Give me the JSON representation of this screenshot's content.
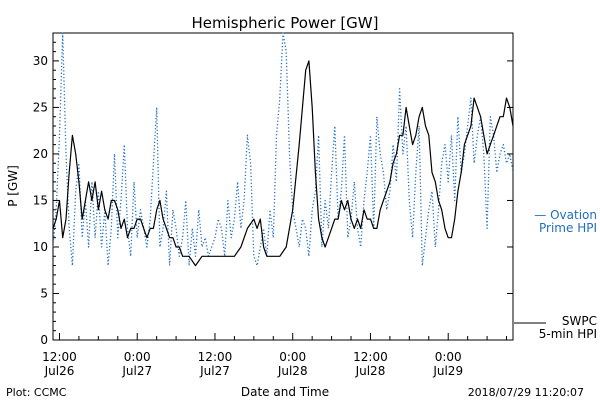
{
  "chart_data": {
    "type": "line",
    "title": "Hemispheric Power [GW]",
    "xlabel": "Date and Time",
    "ylabel": "P [GW]",
    "ylim": [
      0,
      33
    ],
    "xlim_hours_from_jul26_1200": [
      -1,
      70
    ],
    "y_ticks": [
      0,
      5,
      10,
      15,
      20,
      25,
      30
    ],
    "x_ticks": [
      {
        "hours": 0,
        "line1": "12:00",
        "line2": "Jul26"
      },
      {
        "hours": 12,
        "line1": "0:00",
        "line2": "Jul27"
      },
      {
        "hours": 24,
        "line1": "12:00",
        "line2": "Jul27"
      },
      {
        "hours": 36,
        "line1": "0:00",
        "line2": "Jul28"
      },
      {
        "hours": 48,
        "line1": "12:00",
        "line2": "Jul28"
      },
      {
        "hours": 60,
        "line1": "0:00",
        "line2": "Jul29"
      }
    ],
    "grid": false,
    "series": [
      {
        "name": "SWPC 5-min HPI",
        "style": "solid",
        "color": "#000000",
        "x": [
          -1,
          -0.5,
          0,
          0.5,
          1,
          1.5,
          2,
          2.5,
          3,
          3.5,
          4,
          4.5,
          5,
          5.5,
          6,
          6.5,
          7,
          7.5,
          8,
          8.5,
          9,
          9.5,
          10,
          10.5,
          11,
          11.5,
          12,
          12.5,
          13,
          13.5,
          14,
          14.5,
          15,
          15.5,
          16,
          16.5,
          17,
          17.5,
          18,
          18.5,
          19,
          20,
          21,
          22,
          23,
          24,
          25,
          26,
          27,
          28,
          29,
          30,
          30.5,
          31,
          31.5,
          32,
          32.5,
          33,
          33.5,
          34,
          35,
          36,
          37,
          38,
          38.5,
          39,
          39.5,
          40,
          40.5,
          41,
          41.5,
          42,
          42.5,
          43,
          43.5,
          44,
          44.5,
          45,
          45.5,
          46,
          46.5,
          47,
          47.5,
          48,
          48.5,
          49,
          49.5,
          50,
          50.5,
          51,
          51.5,
          52,
          52.5,
          53,
          53.5,
          54,
          54.5,
          55,
          55.5,
          56,
          56.5,
          57,
          57.5,
          58,
          58.5,
          59,
          59.5,
          60,
          60.5,
          61,
          61.5,
          62,
          62.5,
          63,
          63.5,
          64,
          64.5,
          65,
          65.5,
          66,
          66.5,
          67,
          67.5,
          68,
          68.5,
          69,
          69.5,
          70
        ],
        "y": [
          12,
          13,
          15,
          11,
          13,
          18,
          22,
          20,
          17,
          13,
          15,
          17,
          15,
          17,
          14,
          16,
          14,
          13,
          15,
          15,
          14,
          12,
          13,
          11,
          12,
          12,
          13,
          13,
          12,
          11,
          12,
          12,
          14,
          15,
          13,
          12,
          11,
          11,
          10,
          10,
          9,
          9,
          8,
          9,
          9,
          9,
          9,
          9,
          9,
          10,
          12,
          13,
          12,
          13,
          10,
          9,
          9,
          9,
          9,
          9,
          10,
          14,
          21,
          29,
          30,
          25,
          18,
          13,
          11,
          10,
          11,
          12,
          13,
          13,
          15,
          14,
          15,
          13,
          12,
          13,
          12,
          14,
          13,
          13,
          12,
          12,
          14,
          15,
          16,
          17,
          19,
          20,
          22,
          22,
          25,
          23,
          21,
          22,
          24,
          25,
          23,
          22,
          18,
          17,
          15,
          14,
          12,
          11,
          11,
          13,
          16,
          18,
          21,
          22,
          23,
          26,
          25,
          24,
          22,
          20,
          21,
          22,
          23,
          24,
          24,
          26,
          25,
          23
        ]
      },
      {
        "name": "Ovation Prime HPI",
        "style": "dotted",
        "color": "#1f6fbf",
        "x": [
          -1,
          -0.5,
          0,
          0.5,
          1,
          1.5,
          2,
          2.5,
          3,
          3.5,
          4,
          4.5,
          5,
          5.5,
          6,
          6.5,
          7,
          7.5,
          8,
          8.5,
          9,
          9.5,
          10,
          10.5,
          11,
          11.5,
          12,
          12.5,
          13,
          13.5,
          14,
          14.5,
          15,
          15.5,
          16,
          16.5,
          17,
          17.5,
          18,
          18.5,
          19,
          19.5,
          20,
          20.5,
          21,
          21.5,
          22,
          22.5,
          23,
          23.5,
          24,
          24.5,
          25,
          25.5,
          26,
          26.5,
          27,
          27.5,
          28,
          28.5,
          29,
          29.5,
          30,
          30.5,
          31,
          31.5,
          32,
          32.5,
          33,
          33.5,
          34,
          34.5,
          35,
          35.5,
          36,
          36.5,
          37,
          37.5,
          38,
          38.5,
          39,
          39.5,
          40,
          40.5,
          41,
          41.5,
          42,
          42.5,
          43,
          43.5,
          44,
          44.5,
          45,
          45.5,
          46,
          46.5,
          47,
          47.5,
          48,
          48.5,
          49,
          49.5,
          50,
          50.5,
          51,
          51.5,
          52,
          52.5,
          53,
          53.5,
          54,
          54.5,
          55,
          55.5,
          56,
          56.5,
          57,
          57.5,
          58,
          58.5,
          59,
          59.5,
          60,
          60.5,
          61,
          61.5,
          62,
          62.5,
          63,
          63.5,
          64,
          64.5,
          65,
          65.5,
          66,
          66.5,
          67,
          67.5,
          68,
          68.5,
          69,
          69.5,
          70
        ],
        "y": [
          10,
          14,
          22,
          33,
          20,
          12,
          8,
          16,
          19,
          11,
          15,
          10,
          17,
          11,
          16,
          10,
          14,
          8,
          12,
          20,
          11,
          15,
          21,
          12,
          9,
          17,
          11,
          14,
          12,
          10,
          13,
          19,
          25,
          10,
          12,
          16,
          8,
          14,
          12,
          9,
          11,
          15,
          8,
          12,
          9,
          14,
          10,
          11,
          9,
          10,
          11,
          13,
          12,
          9,
          15,
          11,
          13,
          17,
          12,
          15,
          22,
          19,
          9,
          8,
          10,
          12,
          9,
          14,
          11,
          22,
          26,
          33,
          31,
          20,
          14,
          12,
          10,
          13,
          12,
          9,
          14,
          16,
          22,
          10,
          15,
          12,
          18,
          23,
          13,
          16,
          22,
          11,
          13,
          17,
          12,
          10,
          15,
          18,
          22,
          12,
          24,
          20,
          18,
          14,
          16,
          21,
          17,
          27,
          20,
          23,
          15,
          11,
          18,
          23,
          8,
          11,
          14,
          16,
          10,
          14,
          19,
          21,
          17,
          22,
          15,
          24,
          18,
          20,
          23,
          26,
          19,
          22,
          24,
          20,
          12,
          24,
          22,
          18,
          20,
          21,
          19,
          20,
          18
        ]
      }
    ],
    "legend": [
      {
        "series": "Ovation Prime HPI",
        "line1": "— Ovation",
        "line2": "Prime HPI",
        "placement": "right-middle"
      },
      {
        "series": "SWPC 5-min HPI",
        "line1": "SWPC",
        "line2": "5-min HPI",
        "placement": "right-bottom"
      }
    ]
  },
  "footer": {
    "left": "Plot: CCMC",
    "right": "2018/07/29 11:20:07"
  }
}
